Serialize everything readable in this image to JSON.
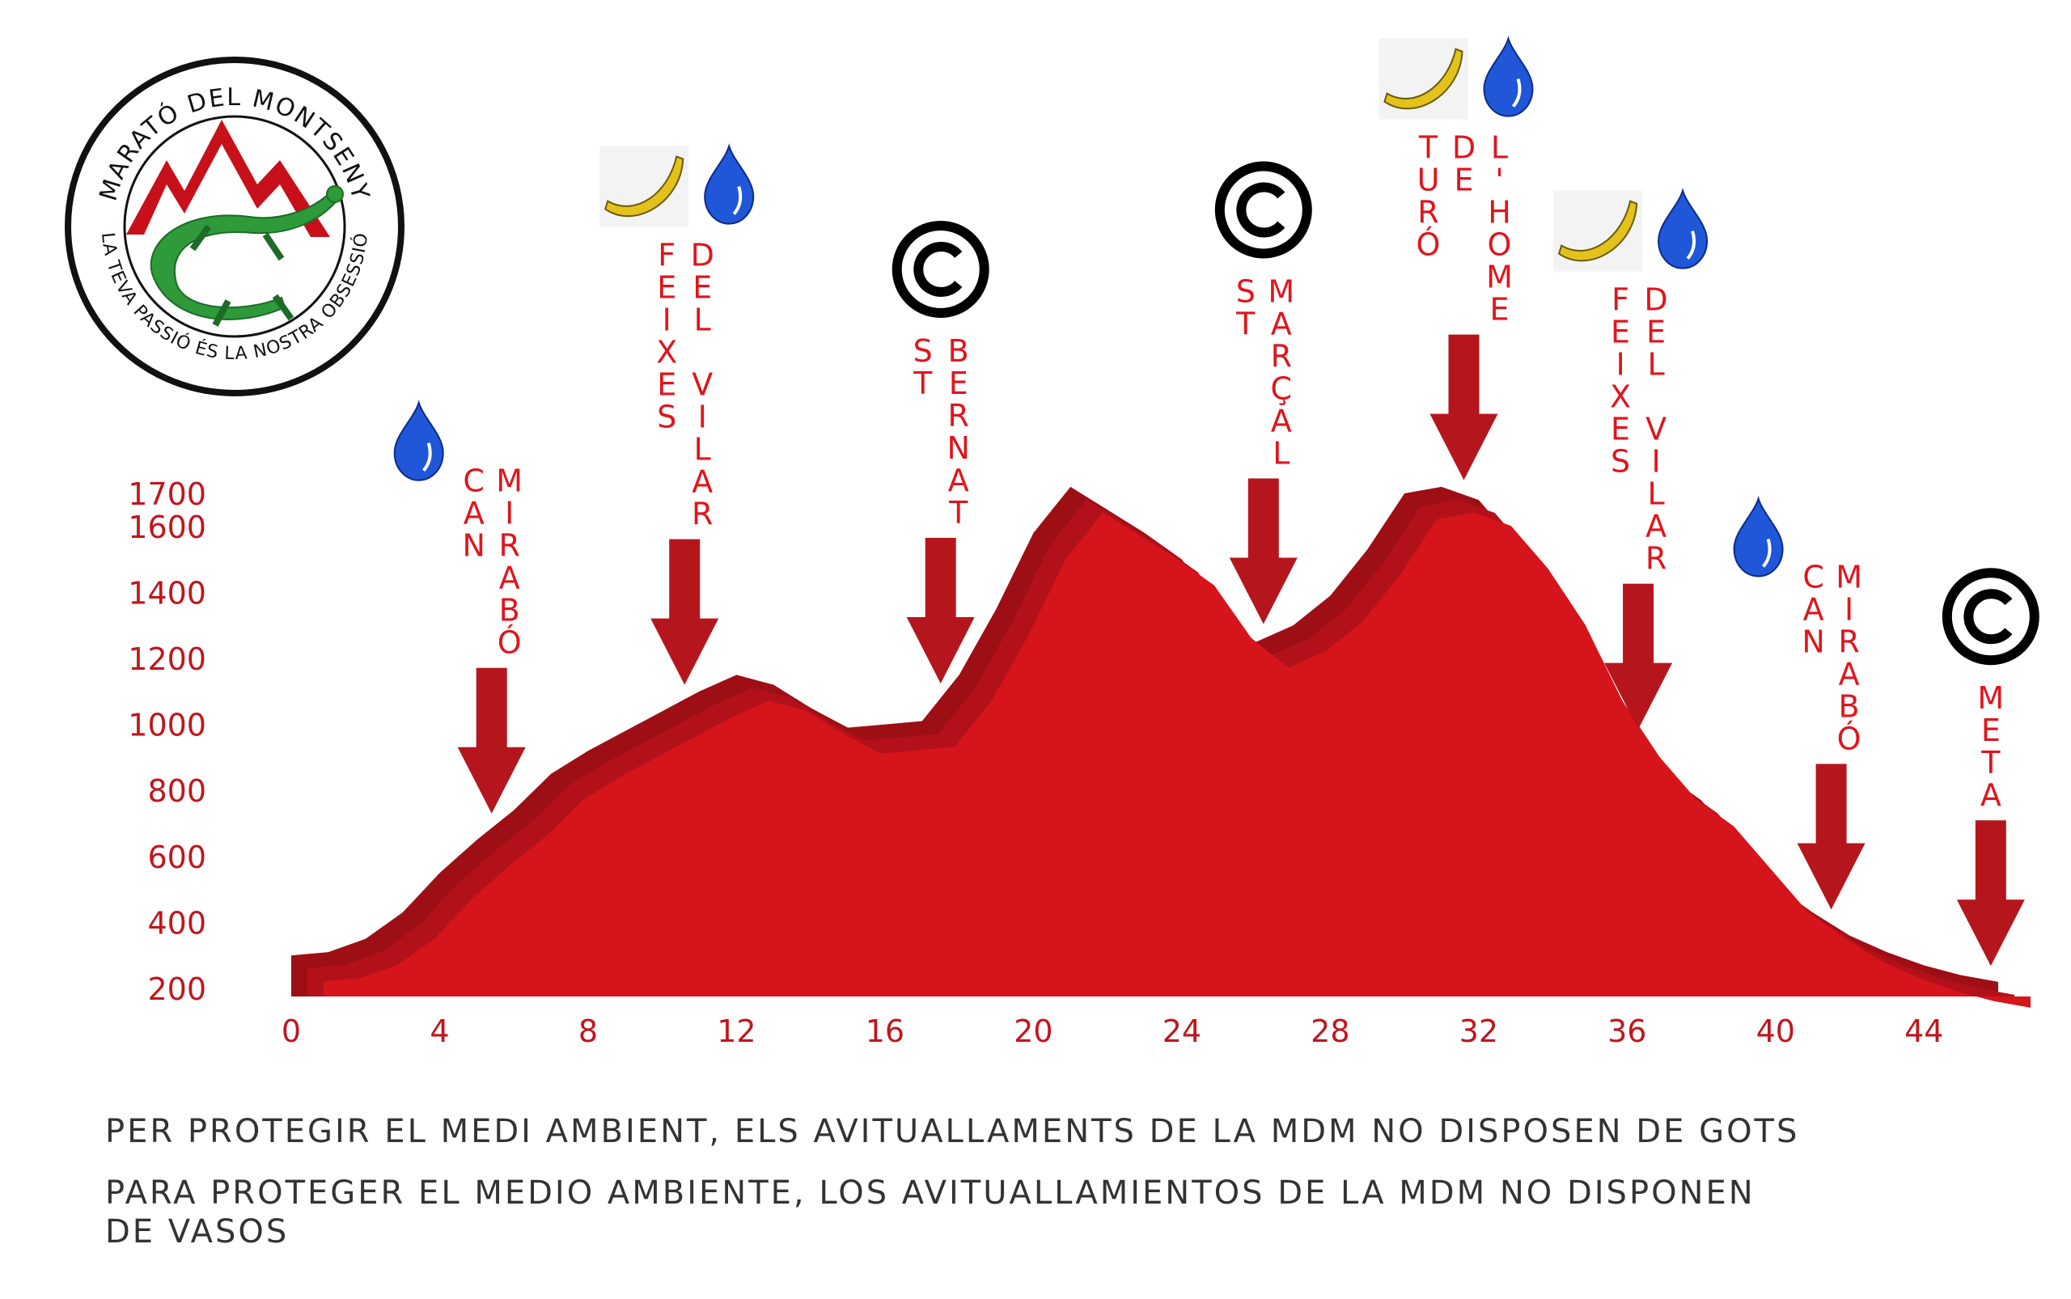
{
  "logo": {
    "text_top": "MARATÓ DEL MONTSENY",
    "text_bottom": "LA TEVA PASSIÓ ÉS LA NOSTRA OBSESSIÓ"
  },
  "notes": {
    "catalan": "PER PROTEGIR EL MEDI AMBIENT, ELS AVITUALLAMENTS DE LA MDM NO DISPOSEN DE GOTS",
    "spanish_line1": "PARA PROTEGER EL MEDIO AMBIENTE, LOS AVITUALLAMIENTOS DE LA MDM NO DISPONEN",
    "spanish_line2": "DE VASOS"
  },
  "colors": {
    "profile": "#d6141c",
    "profile_shadow": "#9e0f15",
    "arrow": "#b5161d",
    "label": "#e0151c",
    "water": "#1f57d8",
    "banana": "#e3c21c"
  },
  "chart_data": {
    "type": "area",
    "xlabel": "",
    "ylabel": "",
    "xlim": [
      0,
      46
    ],
    "ylim": [
      200,
      1700
    ],
    "xticks": [
      0,
      4,
      8,
      12,
      16,
      20,
      24,
      28,
      32,
      36,
      40,
      44
    ],
    "yticks": [
      200,
      400,
      600,
      800,
      1000,
      1200,
      1400,
      1600,
      1700
    ],
    "series": [
      {
        "x": [
          0,
          1,
          2,
          3,
          4,
          5,
          6,
          7,
          8,
          9,
          10,
          11,
          12,
          13,
          14,
          15,
          16,
          17,
          18,
          19,
          20,
          21,
          22,
          23,
          24,
          25,
          26,
          27,
          28,
          29,
          30,
          31,
          32,
          33,
          34,
          35,
          36,
          37,
          38,
          39,
          40,
          41,
          42,
          43,
          44,
          45,
          46
        ],
        "y": [
          300,
          310,
          350,
          430,
          550,
          650,
          740,
          850,
          920,
          980,
          1040,
          1100,
          1150,
          1120,
          1050,
          990,
          1000,
          1010,
          1150,
          1350,
          1580,
          1720,
          1650,
          1580,
          1500,
          1340,
          1250,
          1300,
          1390,
          1530,
          1700,
          1720,
          1680,
          1550,
          1380,
          1150,
          980,
          850,
          770,
          640,
          510,
          430,
          360,
          310,
          270,
          240,
          220
        ]
      }
    ],
    "checkpoints": [
      {
        "km": 5.4,
        "label": [
          "CAN",
          "MIRABÓ"
        ],
        "services": [
          "water"
        ]
      },
      {
        "km": 10.6,
        "label": [
          "FEIXES",
          "DEL VILAR"
        ],
        "services": [
          "banana",
          "water"
        ]
      },
      {
        "km": 17.5,
        "label": [
          "ST",
          "BERNAT"
        ],
        "services": [
          "cutoff"
        ]
      },
      {
        "km": 26.2,
        "label": [
          "ST",
          "MARÇAL"
        ],
        "services": [
          "cutoff"
        ]
      },
      {
        "km": 31.6,
        "label": [
          "TURÓ",
          "DE",
          "L'HOME"
        ],
        "services": [
          "banana",
          "water"
        ]
      },
      {
        "km": 36.3,
        "label": [
          "FEIXES",
          "DEL VILAR"
        ],
        "services": [
          "banana",
          "water"
        ]
      },
      {
        "km": 41.5,
        "label": [
          "CAN",
          "MIRABÓ"
        ],
        "services": [
          "water"
        ]
      },
      {
        "km": 45.8,
        "label": [
          "META"
        ],
        "services": [
          "cutoff"
        ]
      }
    ]
  }
}
